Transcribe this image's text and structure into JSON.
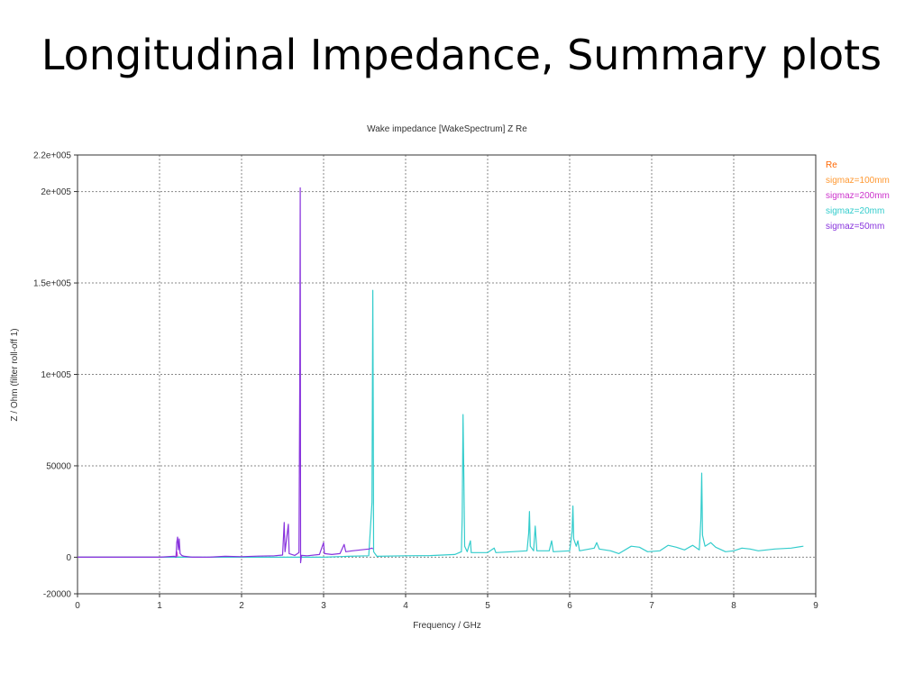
{
  "slide": {
    "title": "Longitudinal Impedance, Summary plots"
  },
  "chart_data": {
    "type": "line",
    "title": "Wake impedance [WakeSpectrum] Z Re",
    "xlabel": "Frequency / GHz",
    "ylabel": "Z / Ohm (filter roll-off 1)",
    "xlim": [
      0,
      9
    ],
    "ylim": [
      -20000,
      220000
    ],
    "x_ticks": [
      0,
      1,
      2,
      3,
      4,
      5,
      6,
      7,
      8,
      9
    ],
    "x_tick_labels": [
      "0",
      "1",
      "2",
      "3",
      "4",
      "5",
      "6",
      "7",
      "8",
      "9"
    ],
    "y_ticks": [
      -20000,
      0,
      50000,
      100000,
      150000,
      200000,
      220000
    ],
    "y_tick_labels": [
      "-20000",
      "0",
      "50000",
      "1e+005",
      "1.5e+005",
      "2e+005",
      "2.2e+005"
    ],
    "grid": true,
    "legend_position": "top-right",
    "legend_title": "Re",
    "legend_title_color": "#ff6600",
    "series": [
      {
        "name": "sigmaz=100mm",
        "color": "#ff9933",
        "points": [
          [
            0,
            0
          ],
          [
            0.5,
            0
          ],
          [
            1.0,
            0
          ],
          [
            1.1,
            0
          ]
        ]
      },
      {
        "name": "sigmaz=200mm",
        "color": "#cc33cc",
        "points": [
          [
            0,
            0
          ],
          [
            0.5,
            0
          ],
          [
            1.0,
            0
          ],
          [
            1.2,
            0
          ],
          [
            1.21,
            3000
          ],
          [
            1.22,
            0
          ],
          [
            1.5,
            0
          ]
        ]
      },
      {
        "name": "sigmaz=20mm",
        "color": "#33cccc",
        "points": [
          [
            0,
            0
          ],
          [
            2.7,
            0
          ],
          [
            3.0,
            0
          ],
          [
            3.3,
            500
          ],
          [
            3.55,
            800
          ],
          [
            3.59,
            30000
          ],
          [
            3.6,
            146000
          ],
          [
            3.605,
            78000
          ],
          [
            3.61,
            3000
          ],
          [
            3.65,
            500
          ],
          [
            4.0,
            800
          ],
          [
            4.3,
            900
          ],
          [
            4.6,
            1500
          ],
          [
            4.68,
            3000
          ],
          [
            4.69,
            22000
          ],
          [
            4.7,
            78000
          ],
          [
            4.71,
            44000
          ],
          [
            4.72,
            6000
          ],
          [
            4.75,
            3000
          ],
          [
            4.79,
            9000
          ],
          [
            4.8,
            2500
          ],
          [
            5.0,
            2500
          ],
          [
            5.08,
            5000
          ],
          [
            5.1,
            2500
          ],
          [
            5.3,
            3000
          ],
          [
            5.48,
            3500
          ],
          [
            5.5,
            13000
          ],
          [
            5.51,
            25000
          ],
          [
            5.52,
            6000
          ],
          [
            5.56,
            3500
          ],
          [
            5.58,
            17000
          ],
          [
            5.6,
            3500
          ],
          [
            5.75,
            3500
          ],
          [
            5.78,
            9000
          ],
          [
            5.8,
            3000
          ],
          [
            6.0,
            3500
          ],
          [
            6.03,
            14000
          ],
          [
            6.04,
            28000
          ],
          [
            6.05,
            10000
          ],
          [
            6.08,
            6000
          ],
          [
            6.1,
            9000
          ],
          [
            6.12,
            3500
          ],
          [
            6.3,
            5000
          ],
          [
            6.33,
            8000
          ],
          [
            6.36,
            4500
          ],
          [
            6.5,
            3500
          ],
          [
            6.6,
            2000
          ],
          [
            6.75,
            6000
          ],
          [
            6.85,
            5500
          ],
          [
            6.95,
            3000
          ],
          [
            7.1,
            3500
          ],
          [
            7.2,
            6500
          ],
          [
            7.3,
            5500
          ],
          [
            7.4,
            4000
          ],
          [
            7.5,
            6500
          ],
          [
            7.58,
            4000
          ],
          [
            7.6,
            21000
          ],
          [
            7.61,
            46000
          ],
          [
            7.62,
            12000
          ],
          [
            7.65,
            6000
          ],
          [
            7.72,
            8000
          ],
          [
            7.78,
            5500
          ],
          [
            7.9,
            3000
          ],
          [
            8.0,
            3500
          ],
          [
            8.1,
            5000
          ],
          [
            8.2,
            4500
          ],
          [
            8.3,
            3500
          ],
          [
            8.5,
            4500
          ],
          [
            8.7,
            5000
          ],
          [
            8.85,
            6000
          ]
        ]
      },
      {
        "name": "sigmaz=50mm",
        "color": "#8833dd",
        "points": [
          [
            0,
            0
          ],
          [
            1.0,
            0
          ],
          [
            1.18,
            500
          ],
          [
            1.2,
            0
          ],
          [
            1.21,
            8000
          ],
          [
            1.22,
            11000
          ],
          [
            1.23,
            4000
          ],
          [
            1.24,
            10000
          ],
          [
            1.25,
            2000
          ],
          [
            1.27,
            1000
          ],
          [
            1.3,
            500
          ],
          [
            1.4,
            0
          ],
          [
            1.6,
            0
          ],
          [
            1.8,
            500
          ],
          [
            2.0,
            300
          ],
          [
            2.2,
            600
          ],
          [
            2.4,
            800
          ],
          [
            2.5,
            1200
          ],
          [
            2.52,
            19000
          ],
          [
            2.53,
            3000
          ],
          [
            2.57,
            18000
          ],
          [
            2.58,
            2000
          ],
          [
            2.65,
            1000
          ],
          [
            2.7,
            2500
          ],
          [
            2.71,
            100000
          ],
          [
            2.715,
            202000
          ],
          [
            2.72,
            -3000
          ],
          [
            2.73,
            1000
          ],
          [
            2.8,
            800
          ],
          [
            2.95,
            1500
          ],
          [
            3.0,
            8000
          ],
          [
            3.01,
            2000
          ],
          [
            3.1,
            1500
          ],
          [
            3.2,
            2000
          ],
          [
            3.25,
            7000
          ],
          [
            3.27,
            3000
          ],
          [
            3.35,
            3500
          ],
          [
            3.45,
            4000
          ],
          [
            3.55,
            4500
          ],
          [
            3.59,
            5000
          ],
          [
            3.6,
            4500
          ]
        ]
      }
    ]
  }
}
